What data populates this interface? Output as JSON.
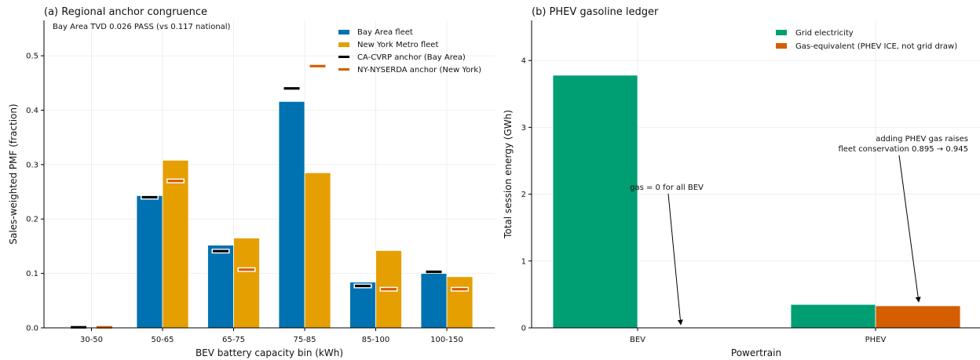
{
  "chart_data": [
    {
      "type": "bar",
      "title": "(a) Regional anchor congruence",
      "xlabel": "BEV battery capacity bin (kWh)",
      "ylabel": "Sales-weighted PMF (fraction)",
      "annotation": "Bay Area TVD 0.026 PASS  (vs 0.117 national)",
      "categories": [
        "30-50",
        "50-65",
        "65-75",
        "75-85",
        "85-100",
        "100-150"
      ],
      "ylim": [
        0,
        0.565
      ],
      "yticks": [
        0.0,
        0.1,
        0.2,
        0.3,
        0.4,
        0.5
      ],
      "ytick_labels": [
        "0.0",
        "0.1",
        "0.2",
        "0.3",
        "0.4",
        "0.5"
      ],
      "grid": true,
      "legend_position": "top-right",
      "series": [
        {
          "name": "Bay Area fleet",
          "color": "#0072b2",
          "values": [
            0.0,
            0.243,
            0.152,
            0.416,
            0.084,
            0.1
          ]
        },
        {
          "name": "New York Metro fleet",
          "color": "#e69f00",
          "values": [
            0.0,
            0.308,
            0.165,
            0.285,
            0.142,
            0.094
          ]
        }
      ],
      "anchors": [
        {
          "name": "CA-CVRP anchor (Bay Area)",
          "color": "#000000",
          "values": [
            0.001,
            0.24,
            0.141,
            0.44,
            0.077,
            0.103
          ]
        },
        {
          "name": "NY-NYSERDA anchor (New York)",
          "color": "#d55e00",
          "values": [
            0.001,
            0.27,
            0.107,
            0.481,
            0.071,
            0.071
          ]
        }
      ]
    },
    {
      "type": "bar",
      "title": "(b) PHEV gasoline ledger",
      "xlabel": "Powertrain",
      "ylabel": "Total session energy (GWh)",
      "categories": [
        "BEV",
        "PHEV"
      ],
      "ylim": [
        0,
        4.6
      ],
      "yticks": [
        0,
        1,
        2,
        3,
        4
      ],
      "ytick_labels": [
        "0",
        "1",
        "2",
        "3",
        "4"
      ],
      "grid": true,
      "legend_position": "top-right",
      "series": [
        {
          "name": "Grid electricity",
          "color": "#009e73",
          "values": [
            3.78,
            0.35
          ]
        },
        {
          "name": "Gas-equivalent (PHEV ICE, not grid draw)",
          "color": "#d55e00",
          "values": [
            0.0,
            0.33
          ]
        }
      ],
      "annotations": [
        {
          "text": [
            "gas = 0 for all BEV"
          ]
        },
        {
          "text": [
            "adding PHEV gas raises",
            "fleet conservation 0.895 → 0.945"
          ]
        }
      ]
    }
  ]
}
